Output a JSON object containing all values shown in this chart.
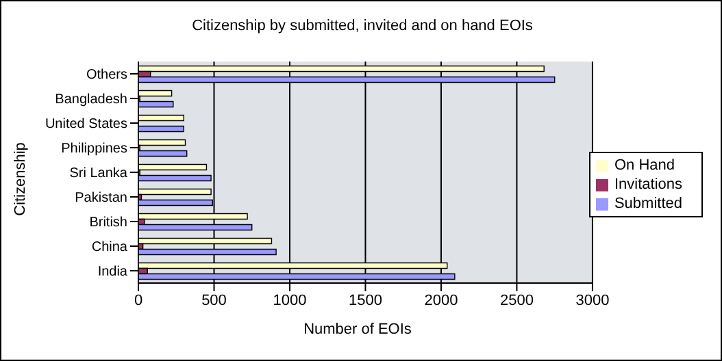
{
  "chart_data": {
    "type": "bar",
    "orientation": "horizontal",
    "title": "Citizenship by submitted, invited and on hand EOIs",
    "xlabel": "Number of EOIs",
    "ylabel": "Citizenship",
    "categories": [
      "Others",
      "Bangladesh",
      "United States",
      "Philippines",
      "Sri Lanka",
      "Pakistan",
      "British",
      "China",
      "India"
    ],
    "series": [
      {
        "name": "On Hand",
        "color": "#ffffcc",
        "values": [
          2680,
          220,
          300,
          310,
          450,
          480,
          720,
          880,
          2040
        ]
      },
      {
        "name": "Invitations",
        "color": "#993366",
        "values": [
          80,
          10,
          null,
          10,
          10,
          20,
          40,
          30,
          60
        ]
      },
      {
        "name": "Submitted",
        "color": "#9999ff",
        "values": [
          2750,
          230,
          300,
          320,
          480,
          490,
          750,
          910,
          2090
        ]
      }
    ],
    "xlim": [
      0,
      3000
    ],
    "xticks": [
      0,
      500,
      1000,
      1500,
      2000,
      2500,
      3000
    ],
    "grid": "x",
    "legend": "right"
  }
}
